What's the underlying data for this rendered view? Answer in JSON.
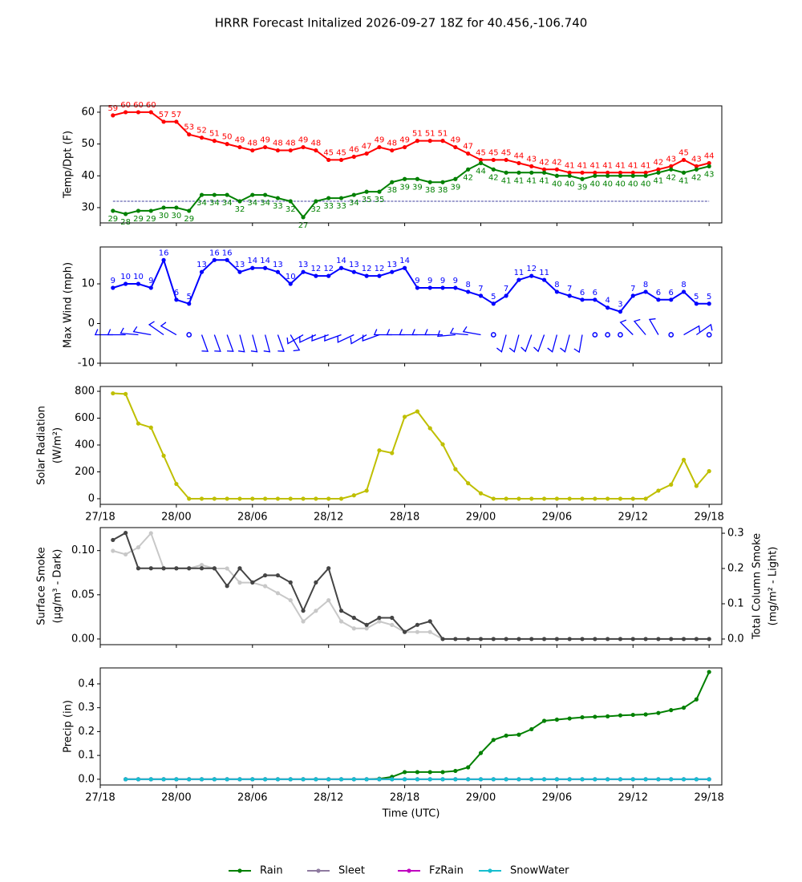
{
  "title": "HRRR Forecast Initalized 2026-09-27 18Z for 40.456,-106.740",
  "chart_data": [
    {
      "type": "line",
      "ylabel": [
        "Temp/Dpt (F)"
      ],
      "x": [
        1,
        2,
        3,
        4,
        5,
        6,
        7,
        8,
        9,
        10,
        11,
        12,
        13,
        14,
        15,
        16,
        17,
        18,
        19,
        20,
        21,
        22,
        23,
        24,
        25,
        26,
        27,
        28,
        29,
        30,
        31,
        32,
        33,
        34,
        35,
        36,
        37,
        38,
        39,
        40,
        41,
        42,
        43,
        44,
        45,
        46,
        47,
        48
      ],
      "xlim": [
        0,
        49
      ],
      "xticks": [
        0,
        6,
        12,
        18,
        24,
        30,
        36,
        42,
        48
      ],
      "ylim": [
        25.2,
        62
      ],
      "yticks": [
        30,
        40,
        50,
        60
      ],
      "hline": 32,
      "hline_color": "#000080",
      "series": [
        {
          "color": "#ff0000",
          "labels": "above",
          "values": [
            59,
            60,
            60,
            60,
            57,
            57,
            53,
            52,
            51,
            50,
            49,
            48,
            49,
            48,
            48,
            49,
            48,
            45,
            45,
            46,
            47,
            49,
            48,
            49,
            51,
            51,
            51,
            49,
            47,
            45,
            45,
            45,
            44,
            43,
            42,
            42,
            41,
            41,
            41,
            41,
            41,
            41,
            41,
            42,
            43,
            45,
            43,
            44
          ]
        },
        {
          "color": "#008000",
          "labels": "below",
          "values": [
            29,
            28,
            29,
            29,
            30,
            30,
            29,
            34,
            34,
            34,
            32,
            34,
            34,
            33,
            32,
            27,
            32,
            33,
            33,
            34,
            35,
            35,
            38,
            39,
            39,
            38,
            38,
            39,
            42,
            44,
            42,
            41,
            41,
            41,
            41,
            40,
            40,
            39,
            40,
            40,
            40,
            40,
            40,
            41,
            42,
            41,
            42,
            43
          ]
        }
      ]
    },
    {
      "type": "line",
      "ylabel": [
        "Max Wind (mph)"
      ],
      "x": [
        1,
        2,
        3,
        4,
        5,
        6,
        7,
        8,
        9,
        10,
        11,
        12,
        13,
        14,
        15,
        16,
        17,
        18,
        19,
        20,
        21,
        22,
        23,
        24,
        25,
        26,
        27,
        28,
        29,
        30,
        31,
        32,
        33,
        34,
        35,
        36,
        37,
        38,
        39,
        40,
        41,
        42,
        43,
        44,
        45,
        46,
        47,
        48
      ],
      "xlim": [
        0,
        49
      ],
      "xticks": [
        0,
        6,
        12,
        18,
        24,
        30,
        36,
        42,
        48
      ],
      "ylim": [
        -10,
        19.3
      ],
      "yticks": [
        -10,
        0,
        10
      ],
      "barb_color": "#0000ff",
      "barb_dir": [
        270,
        270,
        275,
        280,
        305,
        300,
        null,
        160,
        160,
        160,
        165,
        165,
        165,
        160,
        150,
        240,
        245,
        250,
        250,
        245,
        240,
        250,
        270,
        270,
        270,
        270,
        270,
        265,
        275,
        280,
        null,
        195,
        195,
        200,
        200,
        195,
        195,
        190,
        null,
        null,
        null,
        315,
        320,
        330,
        null,
        60,
        55,
        null
      ],
      "series": [
        {
          "color": "#0000ff",
          "labels": "above",
          "values": [
            9,
            10,
            10,
            9,
            16,
            6,
            5,
            13,
            16,
            16,
            13,
            14,
            14,
            13,
            10,
            13,
            12,
            12,
            14,
            13,
            12,
            12,
            13,
            14,
            9,
            9,
            9,
            9,
            8,
            7,
            5,
            7,
            11,
            12,
            11,
            8,
            7,
            6,
            6,
            4,
            3,
            7,
            8,
            6,
            6,
            8,
            5,
            5
          ]
        }
      ]
    },
    {
      "type": "line",
      "ylabel": [
        "Solar Radiation",
        "(W/m²)"
      ],
      "x": [
        1,
        2,
        3,
        4,
        5,
        6,
        7,
        8,
        9,
        10,
        11,
        12,
        13,
        14,
        15,
        16,
        17,
        18,
        19,
        20,
        21,
        22,
        23,
        24,
        25,
        26,
        27,
        28,
        29,
        30,
        31,
        32,
        33,
        34,
        35,
        36,
        37,
        38,
        39,
        40,
        41,
        42,
        43,
        44,
        45,
        46,
        47,
        48
      ],
      "xlim": [
        0,
        49
      ],
      "xticks": [
        {
          "value": 0,
          "label": "27/18"
        },
        {
          "value": 6,
          "label": "28/00"
        },
        {
          "value": 12,
          "label": "28/06"
        },
        {
          "value": 18,
          "label": "28/12"
        },
        {
          "value": 24,
          "label": "28/18"
        },
        {
          "value": 30,
          "label": "29/00"
        },
        {
          "value": 36,
          "label": "29/06"
        },
        {
          "value": 42,
          "label": "29/12"
        },
        {
          "value": 48,
          "label": "29/18"
        }
      ],
      "ylim": [
        -42,
        836
      ],
      "yticks": [
        0,
        200,
        400,
        600,
        800
      ],
      "series": [
        {
          "color": "#bfbf00",
          "values": [
            785,
            780,
            560,
            530,
            320,
            110,
            0,
            0,
            0,
            0,
            0,
            0,
            0,
            0,
            0,
            0,
            0,
            0,
            0,
            25,
            60,
            360,
            340,
            610,
            650,
            525,
            405,
            220,
            115,
            40,
            0,
            0,
            0,
            0,
            0,
            0,
            0,
            0,
            0,
            0,
            0,
            0,
            0,
            60,
            105,
            290,
            95,
            205
          ]
        }
      ]
    },
    {
      "type": "line",
      "ylabel": [
        "Surface Smoke",
        "(μg/m³ - Dark)"
      ],
      "y2label": [
        "Total Column Smoke",
        "(mg/m² - Light)"
      ],
      "x": [
        1,
        2,
        3,
        4,
        5,
        6,
        7,
        8,
        9,
        10,
        11,
        12,
        13,
        14,
        15,
        16,
        17,
        18,
        19,
        20,
        21,
        22,
        23,
        24,
        25,
        26,
        27,
        28,
        29,
        30,
        31,
        32,
        33,
        34,
        35,
        36,
        37,
        38,
        39,
        40,
        41,
        42,
        43,
        44,
        45,
        46,
        47,
        48
      ],
      "xlim": [
        0,
        49
      ],
      "xticks": [
        0,
        6,
        12,
        18,
        24,
        30,
        36,
        42,
        48
      ],
      "ylim": [
        -0.0064,
        0.126
      ],
      "yticks": [
        {
          "value": 0,
          "label": "0.00"
        },
        0.05,
        {
          "value": 0.1,
          "label": "0.10"
        }
      ],
      "y2lim": [
        -0.016,
        0.316
      ],
      "y2ticks": [
        {
          "value": 0,
          "label": "0.0"
        },
        0.1,
        0.2,
        0.3
      ],
      "series": [
        {
          "color": "#c8c8c8",
          "axis": "y2",
          "values": [
            0.25,
            0.24,
            0.26,
            0.3,
            0.2,
            0.2,
            0.2,
            0.21,
            0.2,
            0.2,
            0.16,
            0.16,
            0.15,
            0.13,
            0.11,
            0.05,
            0.08,
            0.11,
            0.05,
            0.03,
            0.03,
            0.05,
            0.04,
            0.02,
            0.02,
            0.02,
            0,
            0,
            0,
            0,
            0,
            0,
            0,
            0,
            0,
            0,
            0,
            0,
            0,
            0,
            0,
            0,
            0,
            0,
            0,
            0,
            0,
            0
          ]
        },
        {
          "color": "#444444",
          "values": [
            0.112,
            0.12,
            0.08,
            0.08,
            0.08,
            0.08,
            0.08,
            0.08,
            0.08,
            0.06,
            0.08,
            0.064,
            0.072,
            0.072,
            0.064,
            0.032,
            0.064,
            0.08,
            0.032,
            0.024,
            0.016,
            0.024,
            0.024,
            0.008,
            0.016,
            0.02,
            0,
            0,
            0,
            0,
            0,
            0,
            0,
            0,
            0,
            0,
            0,
            0,
            0,
            0,
            0,
            0,
            0,
            0,
            0,
            0,
            0,
            0
          ]
        }
      ]
    },
    {
      "type": "line",
      "ylabel": [
        "Precip (in)"
      ],
      "xlabel": "Time (UTC)",
      "legend": "bottom",
      "x": [
        1,
        2,
        3,
        4,
        5,
        6,
        7,
        8,
        9,
        10,
        11,
        12,
        13,
        14,
        15,
        16,
        17,
        18,
        19,
        20,
        21,
        22,
        23,
        24,
        25,
        26,
        27,
        28,
        29,
        30,
        31,
        32,
        33,
        34,
        35,
        36,
        37,
        38,
        39,
        40,
        41,
        42,
        43,
        44,
        45,
        46,
        47,
        48
      ],
      "xlim": [
        0,
        49
      ],
      "xticks": [
        {
          "value": 0,
          "label": "27/18"
        },
        {
          "value": 6,
          "label": "28/00"
        },
        {
          "value": 12,
          "label": "28/06"
        },
        {
          "value": 18,
          "label": "28/12"
        },
        {
          "value": 24,
          "label": "28/18"
        },
        {
          "value": 30,
          "label": "29/00"
        },
        {
          "value": 36,
          "label": "29/06"
        },
        {
          "value": 42,
          "label": "29/12"
        },
        {
          "value": 48,
          "label": "29/18"
        }
      ],
      "ylim": [
        -0.024,
        0.467
      ],
      "yticks": [
        {
          "value": 0,
          "label": "0.0"
        },
        0.1,
        0.2,
        0.3,
        0.4
      ],
      "series": [
        {
          "name": "Rain",
          "color": "#008000",
          "values": [
            null,
            0,
            0,
            0,
            0,
            0,
            0,
            0,
            0,
            0,
            0,
            0,
            0,
            0,
            0,
            0,
            0,
            0,
            0,
            0,
            0,
            0.002,
            0.01,
            0.03,
            0.03,
            0.03,
            0.03,
            0.035,
            0.05,
            0.11,
            0.165,
            0.183,
            0.187,
            0.21,
            0.245,
            0.25,
            0.255,
            0.26,
            0.262,
            0.264,
            0.268,
            0.27,
            0.272,
            0.278,
            0.29,
            0.3,
            0.335,
            0.45
          ]
        },
        {
          "name": "Sleet",
          "color": "#8e7aa0",
          "values": [
            null,
            0,
            0,
            0,
            0,
            0,
            0,
            0,
            0,
            0,
            0,
            0,
            0,
            0,
            0,
            0,
            0,
            0,
            0,
            0,
            0,
            0,
            0,
            0,
            0,
            0,
            0,
            0,
            0,
            0,
            0,
            0,
            0,
            0,
            0,
            0,
            0,
            0,
            0,
            0,
            0,
            0,
            0,
            0,
            0,
            0,
            0,
            0
          ]
        },
        {
          "name": "FzRain",
          "color": "#c000c0",
          "values": [
            null,
            0,
            0,
            0,
            0,
            0,
            0,
            0,
            0,
            0,
            0,
            0,
            0,
            0,
            0,
            0,
            0,
            0,
            0,
            0,
            0,
            0,
            0,
            0,
            0,
            0,
            0,
            0,
            0,
            0,
            0,
            0,
            0,
            0,
            0,
            0,
            0,
            0,
            0,
            0,
            0,
            0,
            0,
            0,
            0,
            0,
            0,
            0
          ]
        },
        {
          "name": "SnowWater",
          "color": "#17becf",
          "values": [
            null,
            0,
            0,
            0,
            0,
            0,
            0,
            0,
            0,
            0,
            0,
            0,
            0,
            0,
            0,
            0,
            0,
            0,
            0,
            0,
            0,
            0,
            0,
            0,
            0,
            0,
            0,
            0,
            0,
            0,
            0,
            0,
            0,
            0,
            0,
            0,
            0,
            0,
            0,
            0,
            0,
            0,
            0,
            0,
            0,
            0,
            0,
            0
          ]
        }
      ]
    }
  ]
}
